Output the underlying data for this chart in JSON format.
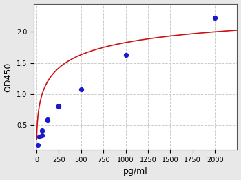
{
  "x_data": [
    15.625,
    31.25,
    62.5,
    62.5,
    125,
    125,
    250,
    250,
    500,
    1000,
    2000
  ],
  "y_data": [
    0.175,
    0.31,
    0.33,
    0.41,
    0.58,
    0.59,
    0.8,
    0.81,
    1.08,
    1.63,
    2.22
  ],
  "xlabel": "pg/ml",
  "ylabel": "OD450",
  "xlim": [
    -30,
    2250
  ],
  "ylim": [
    0.1,
    2.45
  ],
  "xticks": [
    0,
    250,
    500,
    750,
    1000,
    1250,
    1500,
    1750,
    2000
  ],
  "yticks": [
    0.5,
    1.0,
    1.5,
    2.0
  ],
  "dot_color": "#1a1acc",
  "curve_color": "#cc1111",
  "background_color": "#e8e8e8",
  "plot_bg_color": "#ffffff",
  "grid_color": "#cccccc",
  "xlabel_fontsize": 9,
  "ylabel_fontsize": 9,
  "tick_fontsize": 7
}
